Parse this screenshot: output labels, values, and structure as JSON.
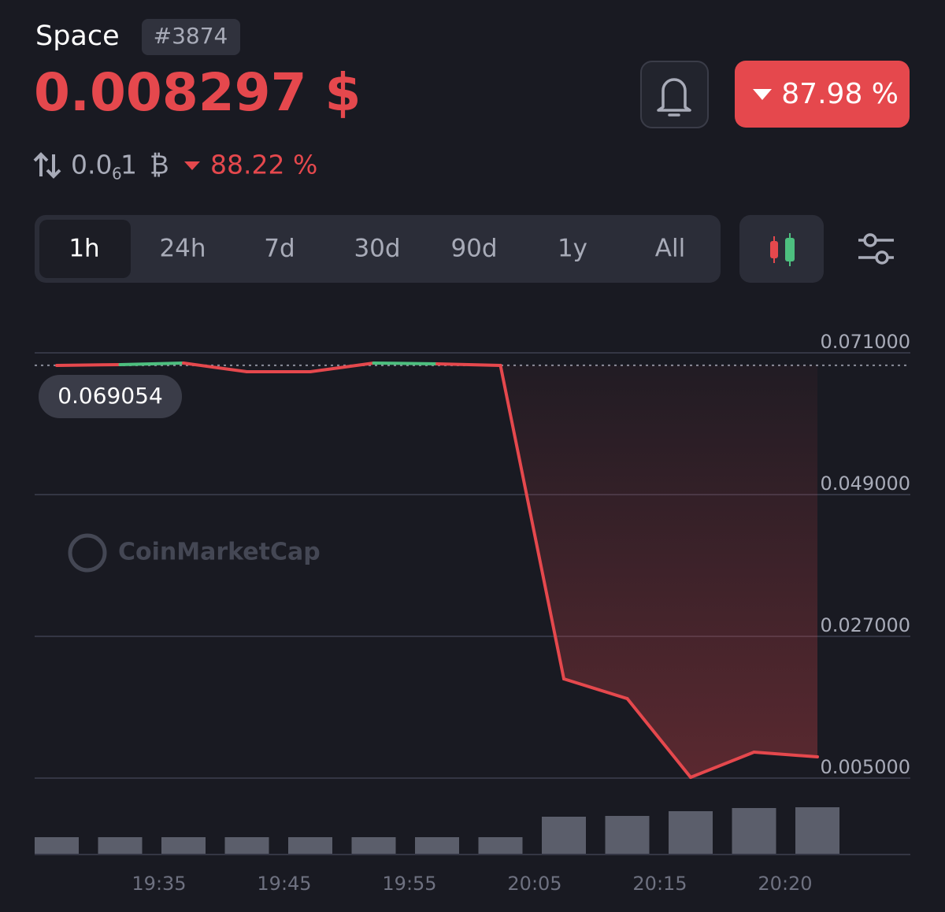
{
  "header": {
    "name": "Space",
    "rank": "#3874",
    "price": "0.008297 $",
    "change": "87.98 %",
    "btc_price": {
      "lead": "0.0",
      "zeros": "6",
      "tail": "1",
      "symbol": "₿"
    },
    "btc_change": "88.22 %"
  },
  "tabs": [
    "1h",
    "24h",
    "7d",
    "30d",
    "90d",
    "1y",
    "All"
  ],
  "active_tab": 0,
  "watermark": "CoinMarketCap",
  "chart_data": {
    "type": "line",
    "values": [
      0.06905,
      0.06917,
      0.06941,
      0.06807,
      0.06807,
      0.06941,
      0.06929,
      0.06905,
      0.0204,
      0.01734,
      0.00512,
      0.00903,
      0.008297
    ],
    "volumes": [
      21,
      21,
      21,
      21,
      21,
      21,
      21,
      21,
      47,
      48,
      54,
      58,
      59
    ],
    "x_labels": [
      "19:35",
      "19:45",
      "19:55",
      "20:05",
      "20:15",
      "20:20"
    ],
    "reference": {
      "value": 0.069054,
      "label": "0.069054"
    },
    "up_color": "#4dbf7f",
    "down_color": "#e5484d",
    "volume_color": "#5b5e6b",
    "ylim": [
      0.005,
      0.071
    ],
    "yticks": [
      {
        "value": 0.071,
        "label": "0.071000"
      },
      {
        "value": 0.049,
        "label": "0.049000"
      },
      {
        "value": 0.027,
        "label": "0.027000"
      },
      {
        "value": 0.005,
        "label": "0.005000"
      }
    ],
    "grid": true
  }
}
